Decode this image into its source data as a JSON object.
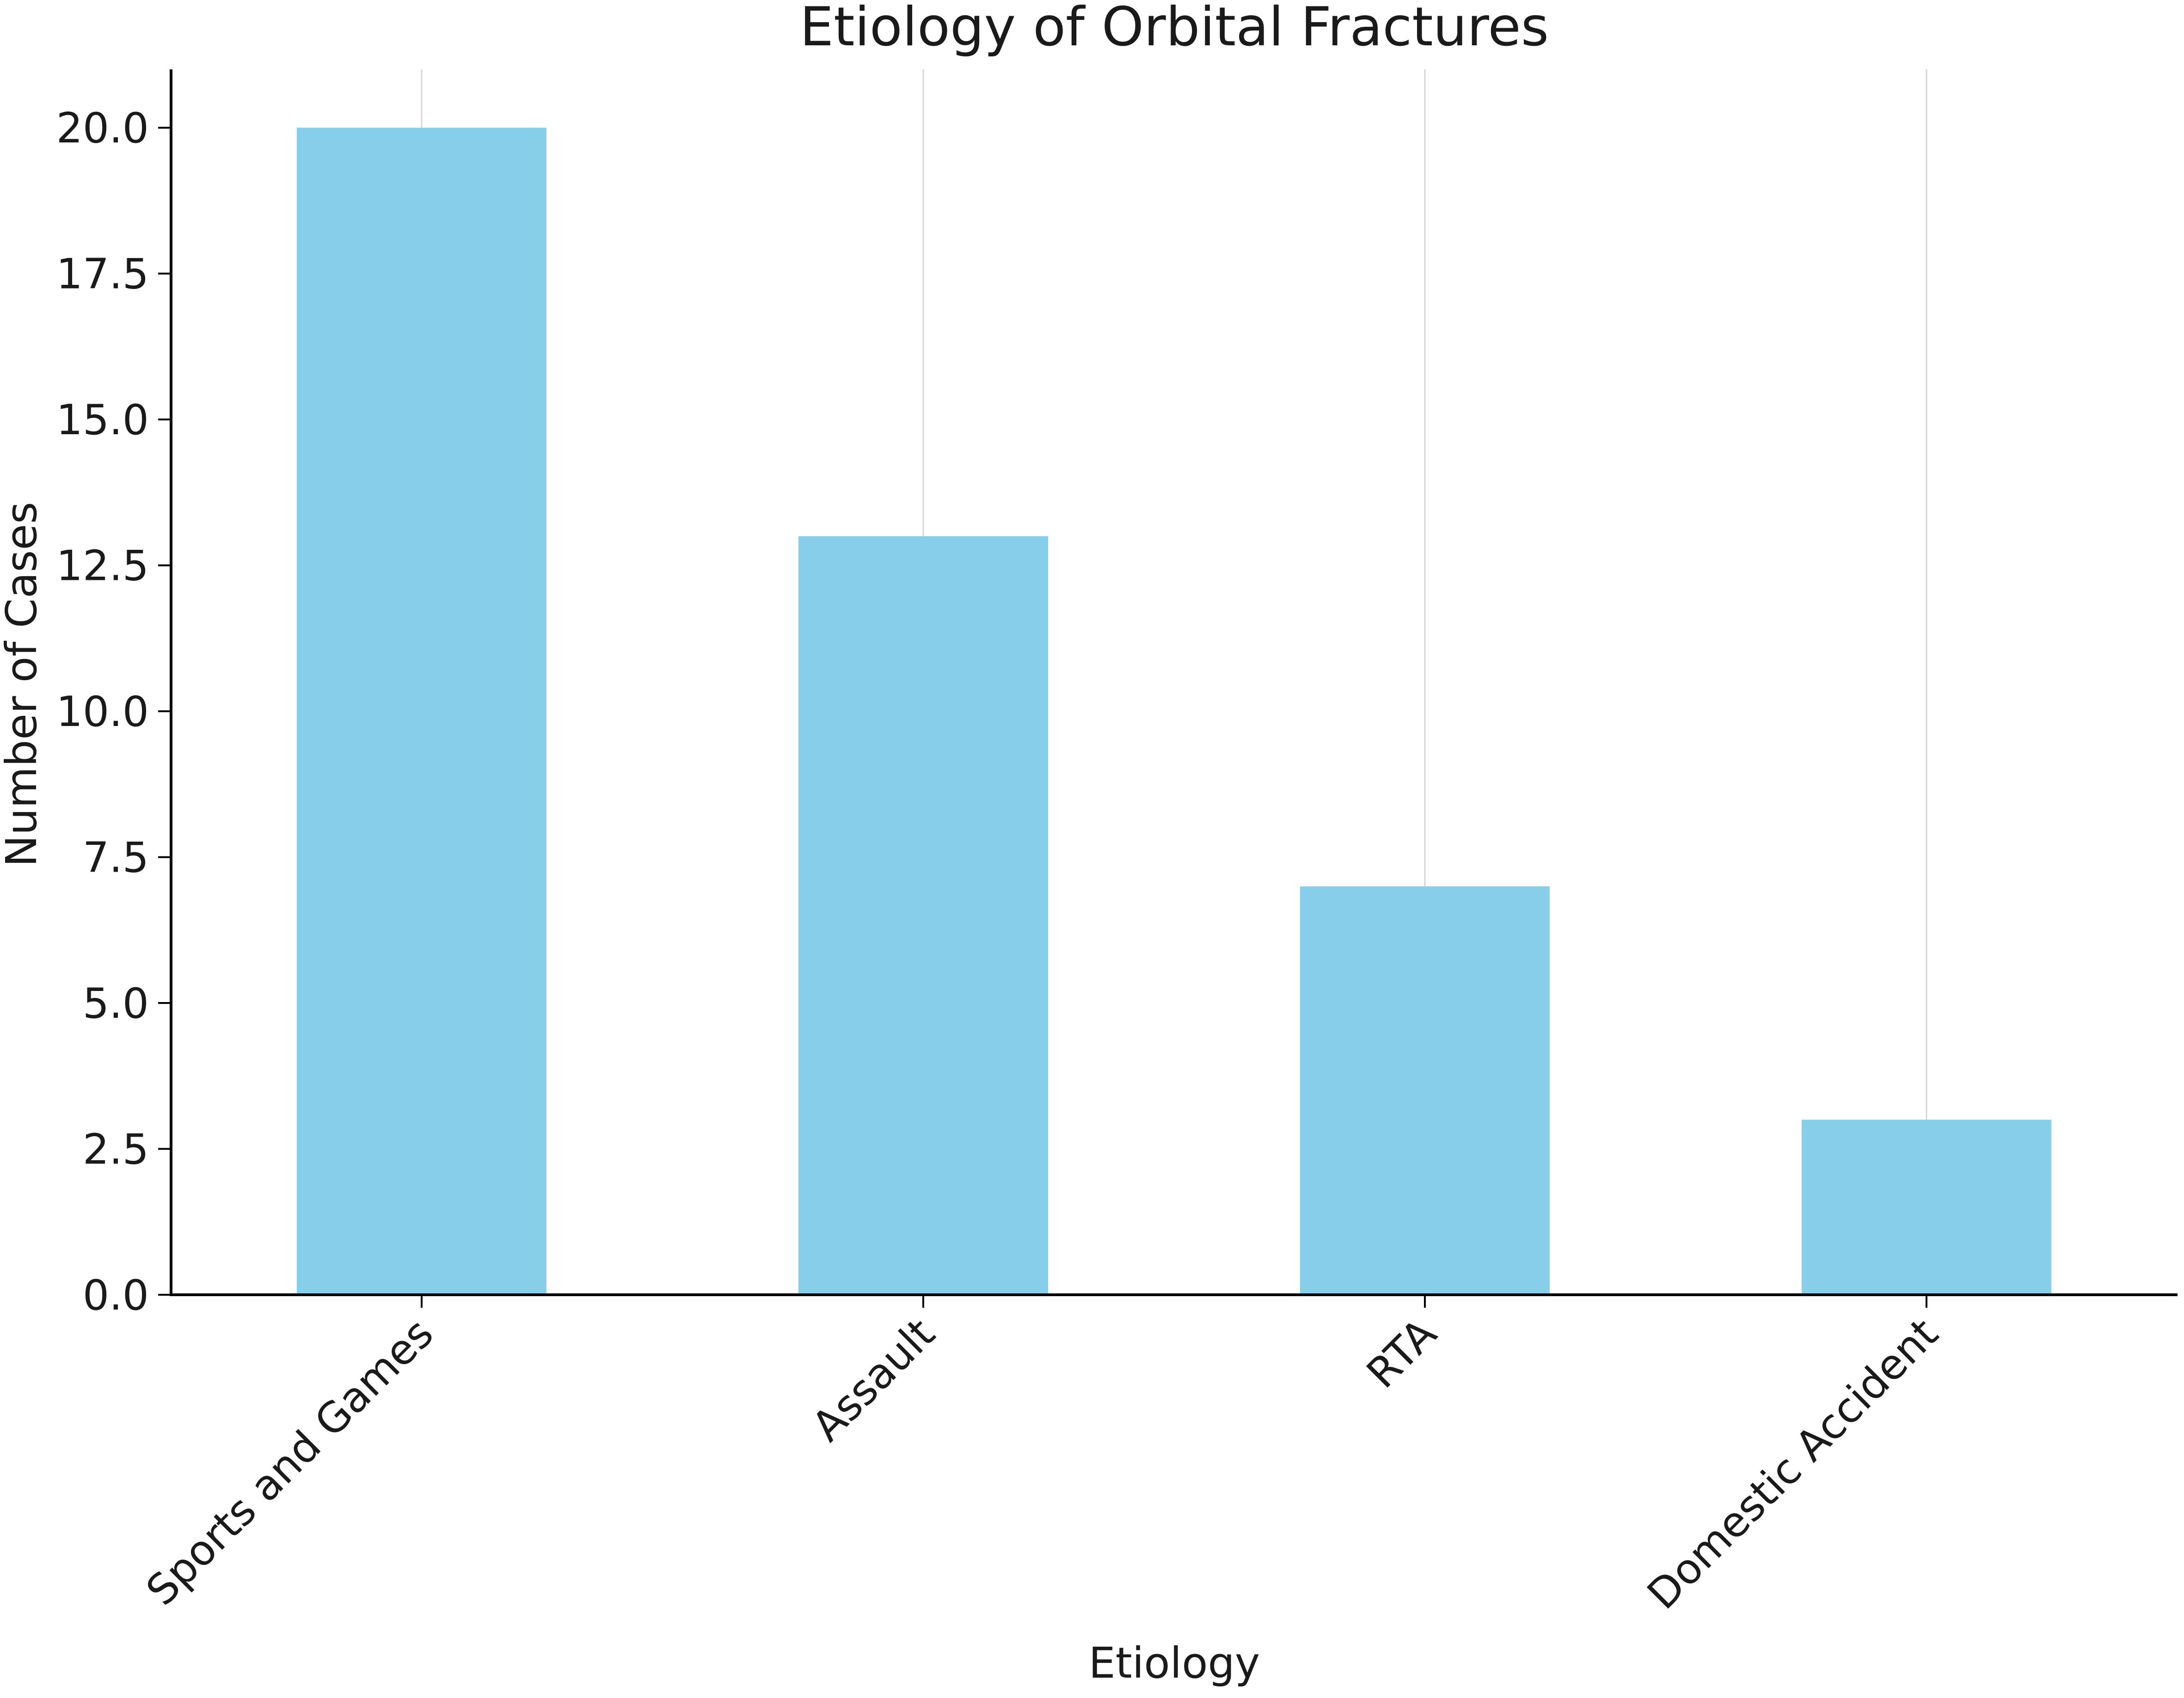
{
  "chart_data": {
    "type": "bar",
    "title": "Etiology of Orbital Fractures",
    "xlabel": "Etiology",
    "ylabel": "Number of Cases",
    "categories": [
      "Sports and Games",
      "Assault",
      "RTA",
      "Domestic Accident"
    ],
    "values": [
      20,
      13,
      7,
      3
    ],
    "ylim": [
      0,
      21
    ],
    "yticks": [
      "0.0",
      "2.5",
      "5.0",
      "7.5",
      "10.0",
      "12.5",
      "15.0",
      "17.5",
      "20.0"
    ],
    "grid": "vertical lines at category positions",
    "legend": "none",
    "colors": {
      "bar": "#87ceeb",
      "axis": "#000000",
      "grid": "#d6d6d6"
    }
  }
}
